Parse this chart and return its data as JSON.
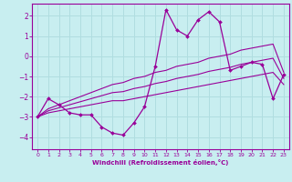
{
  "xlabel": "Windchill (Refroidissement éolien,°C)",
  "background_color": "#c8eef0",
  "grid_color": "#b0dde0",
  "line_color": "#990099",
  "xlim": [
    -0.5,
    23.5
  ],
  "ylim": [
    -4.6,
    2.6
  ],
  "yticks": [
    -4,
    -3,
    -2,
    -1,
    0,
    1,
    2
  ],
  "xticks": [
    0,
    1,
    2,
    3,
    4,
    5,
    6,
    7,
    8,
    9,
    10,
    11,
    12,
    13,
    14,
    15,
    16,
    17,
    18,
    19,
    20,
    21,
    22,
    23
  ],
  "hours": [
    0,
    1,
    2,
    3,
    4,
    5,
    6,
    7,
    8,
    9,
    10,
    11,
    12,
    13,
    14,
    15,
    16,
    17,
    18,
    19,
    20,
    21,
    22,
    23
  ],
  "temp": [
    -3.0,
    -2.1,
    -2.4,
    -2.8,
    -2.9,
    -2.9,
    -3.5,
    -3.8,
    -3.9,
    -3.3,
    -2.5,
    -0.5,
    2.3,
    1.3,
    1.0,
    1.8,
    2.2,
    1.7,
    -0.7,
    -0.5,
    -0.3,
    -0.4,
    -2.1,
    -0.9
  ],
  "upper": [
    -3.0,
    -2.6,
    -2.4,
    -2.2,
    -2.0,
    -1.8,
    -1.6,
    -1.4,
    -1.3,
    -1.1,
    -1.0,
    -0.8,
    -0.7,
    -0.5,
    -0.4,
    -0.3,
    -0.1,
    0.0,
    0.1,
    0.3,
    0.4,
    0.5,
    0.6,
    -0.8
  ],
  "lower": [
    -3.0,
    -2.8,
    -2.7,
    -2.6,
    -2.5,
    -2.4,
    -2.3,
    -2.2,
    -2.2,
    -2.1,
    -2.0,
    -1.9,
    -1.8,
    -1.7,
    -1.6,
    -1.5,
    -1.4,
    -1.3,
    -1.2,
    -1.1,
    -1.0,
    -0.9,
    -0.8,
    -1.4
  ],
  "mid": [
    -3.0,
    -2.7,
    -2.55,
    -2.4,
    -2.25,
    -2.1,
    -1.95,
    -1.8,
    -1.75,
    -1.6,
    -1.5,
    -1.35,
    -1.25,
    -1.1,
    -1.0,
    -0.9,
    -0.75,
    -0.65,
    -0.55,
    -0.4,
    -0.3,
    -0.2,
    -0.1,
    -1.1
  ]
}
